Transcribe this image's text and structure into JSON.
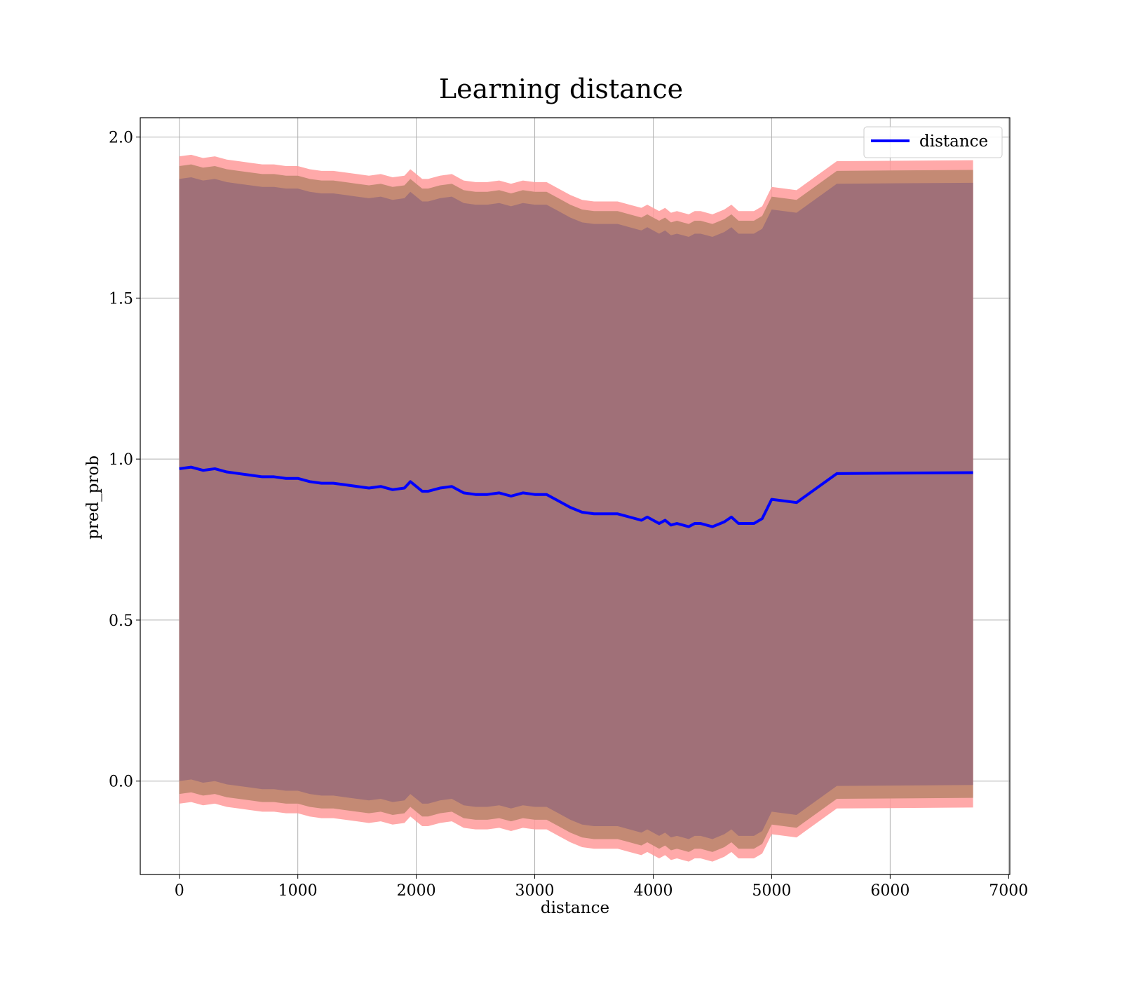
{
  "chart_data": {
    "type": "line",
    "title": "Learning distance",
    "xlabel": "distance",
    "ylabel": "pred_prob",
    "xlim": [
      -330,
      7010
    ],
    "ylim": [
      -0.29,
      2.06
    ],
    "xticks": [
      0,
      1000,
      2000,
      3000,
      4000,
      5000,
      6000,
      7000
    ],
    "xtick_labels": [
      "0",
      "1000",
      "2000",
      "3000",
      "4000",
      "5000",
      "6000",
      "7000"
    ],
    "yticks": [
      0.0,
      0.5,
      1.0,
      1.5,
      2.0
    ],
    "ytick_labels": [
      "0.0",
      "0.5",
      "1.0",
      "1.5",
      "2.0"
    ],
    "grid": true,
    "legend_position": "top-right",
    "colors": {
      "line": "#0000ff",
      "band_outer": "#ff9a9a",
      "band_middle": "#c48a74",
      "band_inner": "#a07078",
      "grid": "#b0b0b0"
    },
    "series": [
      {
        "name": "distance",
        "x": [
          0,
          100,
          200,
          300,
          400,
          500,
          600,
          700,
          800,
          900,
          1000,
          1100,
          1200,
          1300,
          1400,
          1500,
          1600,
          1700,
          1800,
          1900,
          1950,
          2000,
          2050,
          2100,
          2200,
          2300,
          2400,
          2500,
          2600,
          2700,
          2800,
          2900,
          3000,
          3100,
          3200,
          3300,
          3400,
          3500,
          3600,
          3700,
          3800,
          3900,
          3950,
          4000,
          4050,
          4100,
          4150,
          4200,
          4250,
          4300,
          4350,
          4400,
          4500,
          4600,
          4660,
          4720,
          4800,
          4850,
          4920,
          5000,
          5210,
          5550,
          6700
        ],
        "y": [
          0.97,
          0.975,
          0.965,
          0.97,
          0.96,
          0.955,
          0.95,
          0.945,
          0.945,
          0.94,
          0.94,
          0.93,
          0.925,
          0.925,
          0.92,
          0.915,
          0.91,
          0.915,
          0.905,
          0.91,
          0.93,
          0.915,
          0.9,
          0.9,
          0.91,
          0.915,
          0.895,
          0.89,
          0.89,
          0.895,
          0.885,
          0.895,
          0.89,
          0.89,
          0.87,
          0.85,
          0.835,
          0.83,
          0.83,
          0.83,
          0.82,
          0.81,
          0.82,
          0.81,
          0.8,
          0.81,
          0.795,
          0.8,
          0.795,
          0.79,
          0.8,
          0.8,
          0.79,
          0.805,
          0.82,
          0.8,
          0.8,
          0.8,
          0.815,
          0.875,
          0.865,
          0.955,
          0.958
        ]
      }
    ],
    "bands": [
      {
        "layer": "outer",
        "lower_offset": -0.1,
        "upper_offset": 0.03
      },
      {
        "layer": "middle",
        "lower_offset": -0.07,
        "upper_offset": 0.0
      },
      {
        "layer": "inner",
        "lower_offset": -0.03,
        "upper_offset": -0.04
      }
    ],
    "band_half_width": 0.94
  }
}
